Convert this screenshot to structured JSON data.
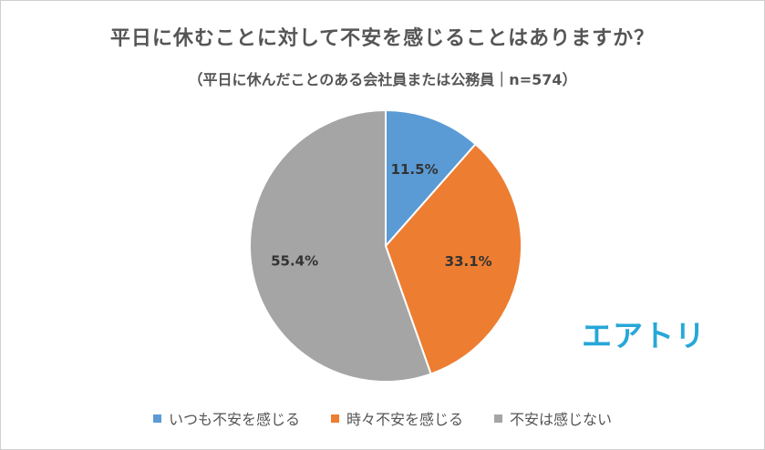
{
  "title": "平日に休むことに対して不安を感じることはありますか？",
  "subtitle": "（平日に休んだことのある会社員または公務員｜n=574）",
  "brand": {
    "logo_text": "エアトリ",
    "color": "#27a7d8"
  },
  "chart_data": {
    "type": "pie",
    "categories": [
      "いつも不安を感じる",
      "時々不安を感じる",
      "不安は感じない"
    ],
    "values": [
      11.5,
      33.1,
      55.4
    ],
    "data_labels": [
      "11.5%",
      "33.1%",
      "55.4%"
    ],
    "colors": [
      "#5b9bd5",
      "#ed7d31",
      "#a5a5a5"
    ],
    "title": "平日に休むことに対して不安を感じることはありますか？",
    "subtitle": "（平日に休んだことのある会社員または公務員｜n=574）",
    "legend_position": "bottom",
    "start_angle": "12 o'clock, clockwise"
  }
}
